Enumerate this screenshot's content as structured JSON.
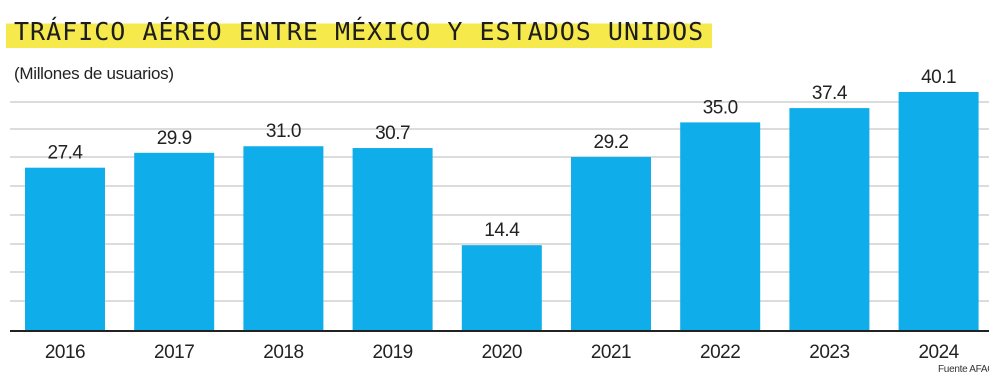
{
  "title": "TRÁFICO AÉREO ENTRE MÉXICO Y ESTADOS UNIDOS",
  "subtitle": "(Millones de usuarios)",
  "source": "Fuente AFAC",
  "colors": {
    "bar": "#0faeea",
    "title_highlight": "#f5e94c",
    "grid": "#b9b9b9",
    "baseline": "#222222",
    "text": "#222222"
  },
  "chart_data": {
    "type": "bar",
    "title": "TRÁFICO AÉREO ENTRE MÉXICO Y ESTADOS UNIDOS",
    "subtitle": "(Millones de usuarios)",
    "xlabel": "",
    "ylabel": "",
    "categories": [
      "2016",
      "2017",
      "2018",
      "2019",
      "2020",
      "2021",
      "2022",
      "2023",
      "2024"
    ],
    "values": [
      27.4,
      29.9,
      31.0,
      30.7,
      14.4,
      29.2,
      35.0,
      37.4,
      40.1
    ],
    "value_labels": [
      "27.4",
      "29.9",
      "31.0",
      "30.7",
      "14.4",
      "29.2",
      "35.0",
      "37.4",
      "40.1"
    ],
    "ylim": [
      0,
      40.1
    ],
    "grid": true,
    "legend": "none"
  }
}
